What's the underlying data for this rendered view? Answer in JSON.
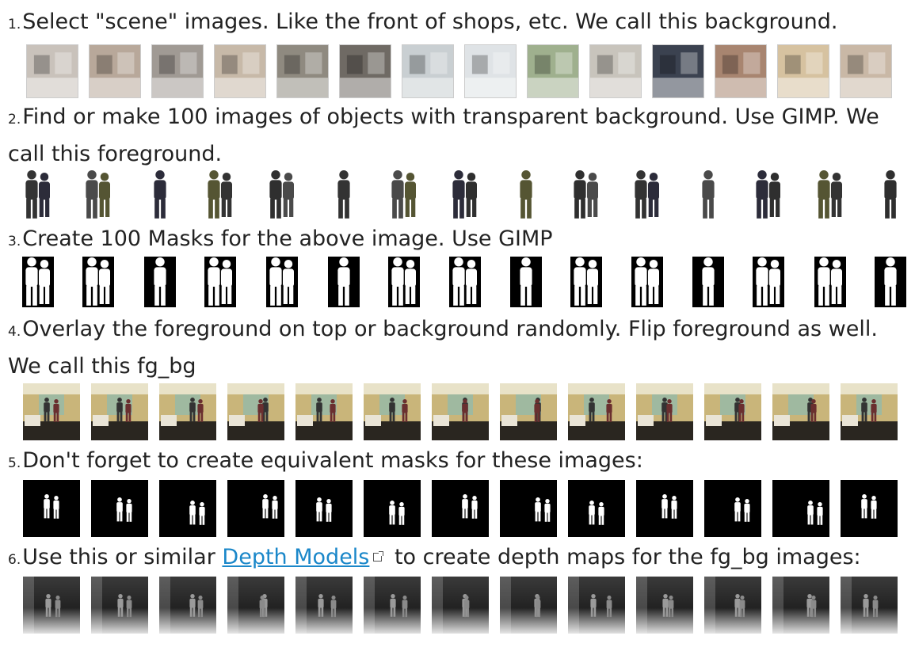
{
  "steps": [
    {
      "num": "1.",
      "text": "Select \"scene\" images. Like the front of shops, etc.  We call this background."
    },
    {
      "num": "2.",
      "text": "Find or make 100 images of objects with transparent background. Use GIMP. We call this foreground."
    },
    {
      "num": "3.",
      "text": "Create 100 Masks for the above image. Use GIMP"
    },
    {
      "num": "4.",
      "text": "Overlay the foreground on top or background randomly. Flip foreground as well. We call this fg_bg"
    },
    {
      "num": "5.",
      "text": "Don't forget to create equivalent masks for these images:"
    },
    {
      "num": "6.",
      "text_before": "Use this or similar ",
      "link": "Depth Models",
      "text_after": " to create depth maps for the fg_bg images:"
    }
  ],
  "colors": {
    "link": "#1a87c9",
    "mask_bg": "#000000",
    "mask_fg": "#ffffff"
  }
}
